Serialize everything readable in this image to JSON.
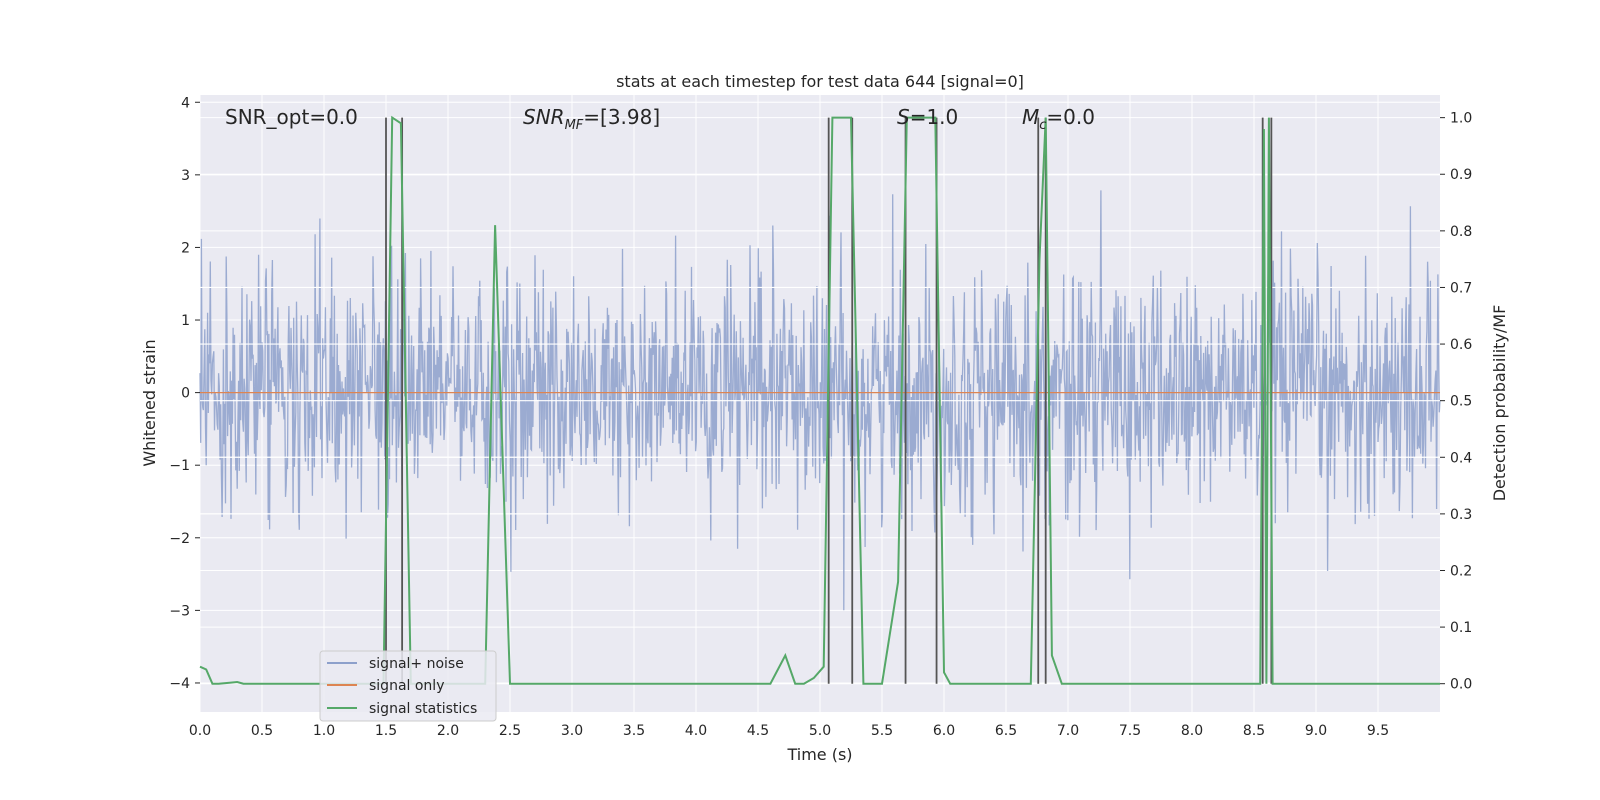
{
  "chart_data": {
    "type": "line",
    "title": "stats at each timestep for test data 644 [signal=0]",
    "xlabel": "Time (s)",
    "ylabel": "Whitened strain",
    "ylabel_right": "Detection probability/MF",
    "xlim": [
      0.0,
      10.0
    ],
    "ylim": [
      -4.4,
      4.1
    ],
    "ylim_right": [
      -0.05,
      1.04
    ],
    "xticks": [
      "0.0",
      "0.5",
      "1.0",
      "1.5",
      "2.0",
      "2.5",
      "3.0",
      "3.5",
      "4.0",
      "4.5",
      "5.0",
      "5.5",
      "6.0",
      "6.5",
      "7.0",
      "7.5",
      "8.0",
      "8.5",
      "9.0",
      "9.5"
    ],
    "xtick_values": [
      0.0,
      0.5,
      1.0,
      1.5,
      2.0,
      2.5,
      3.0,
      3.5,
      4.0,
      4.5,
      5.0,
      5.5,
      6.0,
      6.5,
      7.0,
      7.5,
      8.0,
      8.5,
      9.0,
      9.5
    ],
    "yticks": [
      "4",
      "3",
      "2",
      "1",
      "0",
      "−1",
      "−2",
      "−3",
      "−4"
    ],
    "ytick_values": [
      4,
      3,
      2,
      1,
      0,
      -1,
      -2,
      -3,
      -4
    ],
    "yticks_right": [
      "1.0",
      "0.9",
      "0.8",
      "0.7",
      "0.6",
      "0.5",
      "0.4",
      "0.3",
      "0.2",
      "0.1",
      "0.0"
    ],
    "ytick_right_values": [
      1.0,
      0.9,
      0.8,
      0.7,
      0.6,
      0.5,
      0.4,
      0.3,
      0.2,
      0.1,
      0.0
    ],
    "grid": true,
    "legend_position": "lower-left",
    "annotations": {
      "snr_opt": "SNR_opt=0.0",
      "snr_mf_main": "SNR",
      "snr_mf_sub": "MF",
      "snr_mf_rest": "=[3.98]",
      "s_main": "S",
      "s_rest": "=1.0",
      "mc_main": "M",
      "mc_sub": "c",
      "mc_rest": "=0.0"
    },
    "series": [
      {
        "name": "signal+ noise",
        "axis": "left",
        "color": "#8da0cb",
        "envelope": {
          "typical_upper": 1.8,
          "typical_lower": -1.8,
          "max": 3.0,
          "min": -3.7
        }
      },
      {
        "name": "signal only",
        "axis": "left",
        "color": "#dd8452",
        "x": [
          0.0,
          10.0
        ],
        "y": [
          0.0,
          0.0
        ]
      },
      {
        "name": "signal statistics",
        "axis": "right",
        "color": "#55a868",
        "x": [
          0.0,
          0.05,
          0.1,
          0.15,
          0.25,
          0.3,
          0.35,
          0.4,
          1.48,
          1.55,
          1.62,
          1.7,
          2.3,
          2.38,
          2.5,
          4.6,
          4.72,
          4.8,
          4.87,
          4.95,
          5.03,
          5.1,
          5.15,
          5.25,
          5.35,
          5.5,
          5.63,
          5.7,
          5.8,
          5.93,
          6.0,
          6.05,
          6.7,
          6.77,
          6.82,
          6.87,
          6.95,
          8.55,
          8.58,
          8.6,
          8.62,
          8.65,
          8.7,
          8.75,
          10.0
        ],
        "y": [
          0.03,
          0.025,
          0.0,
          0.0,
          0.002,
          0.003,
          0.0,
          0.0,
          0.0,
          1.0,
          0.99,
          0.0,
          0.0,
          0.81,
          0.0,
          0.0,
          0.05,
          0.0,
          0.0,
          0.01,
          0.03,
          1.0,
          1.0,
          1.0,
          0.0,
          0.0,
          0.18,
          1.0,
          1.0,
          1.0,
          0.02,
          0.0,
          0.0,
          0.75,
          1.0,
          0.05,
          0.0,
          0.0,
          0.98,
          0.0,
          1.0,
          0.0,
          0.0,
          0.0,
          0.0
        ]
      }
    ],
    "vlines": [
      {
        "x": 1.5,
        "ymin": 0.0,
        "ymax": 1.0,
        "color": "#555555"
      },
      {
        "x": 1.63,
        "ymin": 0.0,
        "ymax": 1.0,
        "color": "#555555"
      },
      {
        "x": 5.07,
        "ymin": 0.0,
        "ymax": 1.0,
        "color": "#555555"
      },
      {
        "x": 5.26,
        "ymin": 0.0,
        "ymax": 1.0,
        "color": "#555555"
      },
      {
        "x": 5.69,
        "ymin": 0.0,
        "ymax": 1.0,
        "color": "#555555"
      },
      {
        "x": 5.94,
        "ymin": 0.0,
        "ymax": 1.0,
        "color": "#555555"
      },
      {
        "x": 6.76,
        "ymin": 0.0,
        "ymax": 1.0,
        "color": "#555555"
      },
      {
        "x": 6.82,
        "ymin": 0.0,
        "ymax": 1.0,
        "color": "#555555"
      },
      {
        "x": 8.57,
        "ymin": 0.0,
        "ymax": 1.0,
        "color": "#555555"
      },
      {
        "x": 8.64,
        "ymin": 0.0,
        "ymax": 1.0,
        "color": "#555555"
      }
    ],
    "horizontal_bands": [
      {
        "y_right": 0.7
      },
      {
        "y_right": 0.6
      },
      {
        "y_right": 0.5
      },
      {
        "y_right": 0.4
      },
      {
        "y_right": 0.3
      }
    ],
    "colors": {
      "plot_background": "#eaeaf2",
      "grid": "#ffffff",
      "noise": "#8da0cb",
      "signal_only": "#dd8452",
      "statistics": "#55a868",
      "vline": "#555555"
    }
  }
}
